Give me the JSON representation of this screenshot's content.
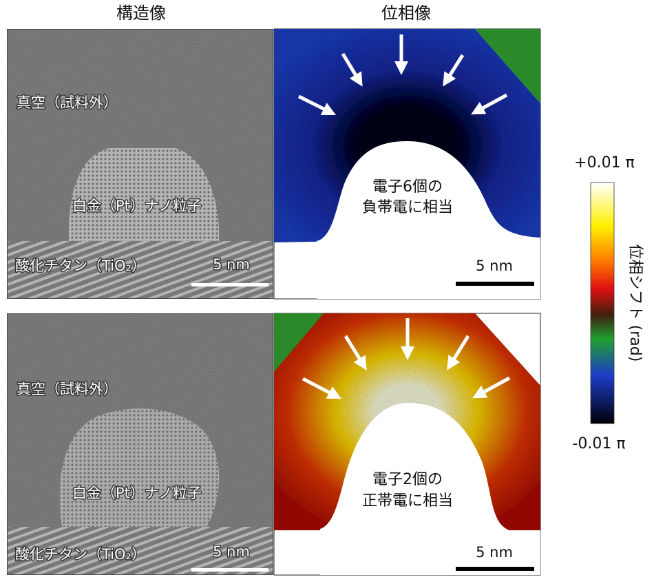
{
  "columns": [
    "構造像",
    "位相像"
  ],
  "rows": [
    {
      "structure": {
        "vacuum": "真空（試料外）",
        "particle": "白金（Pt）ナノ粒子",
        "substrate": "酸化チタン（TiO₂）",
        "scale_bar": "5 nm"
      },
      "phase": {
        "label": [
          "電子6個の",
          "負帯電に相当"
        ],
        "scale_bar": "5 nm"
      }
    },
    {
      "structure": {
        "vacuum": "真空（試料外）",
        "particle": "白金（Pt）ナノ粒子",
        "substrate": "酸化チタン（TiO₂）",
        "scale_bar": "5 nm"
      },
      "phase": {
        "label": [
          "電子2個の",
          "正帯電に相当"
        ],
        "scale_bar": "5 nm"
      }
    }
  ],
  "colorbar": {
    "max": "+0.01 π",
    "min": "-0.01 π",
    "label": "位相シフト (rad)"
  }
}
